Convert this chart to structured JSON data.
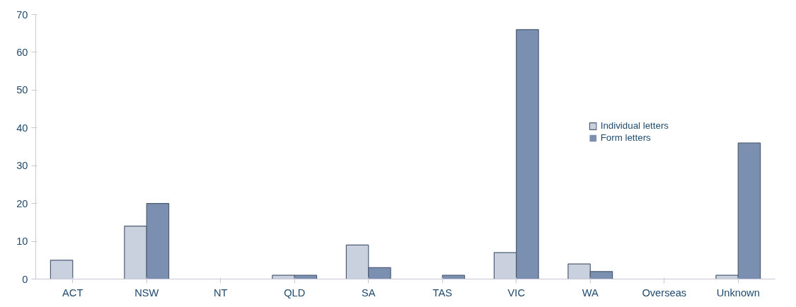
{
  "chart_data": {
    "type": "bar",
    "categories": [
      "ACT",
      "NSW",
      "NT",
      "QLD",
      "SA",
      "TAS",
      "VIC",
      "WA",
      "Overseas",
      "Unknown"
    ],
    "series": [
      {
        "name": "Individual letters",
        "color": "#c9d1df",
        "values": [
          5,
          14,
          0,
          1,
          9,
          0,
          7,
          4,
          0,
          1
        ]
      },
      {
        "name": "Form letters",
        "color": "#7b90b0",
        "values": [
          0,
          20,
          0,
          1,
          3,
          1,
          66,
          2,
          0,
          36
        ]
      }
    ],
    "ylim": [
      0,
      70
    ],
    "yticks": [
      0,
      10,
      20,
      30,
      40,
      50,
      60,
      70
    ],
    "grid": false,
    "legend": "top right"
  }
}
